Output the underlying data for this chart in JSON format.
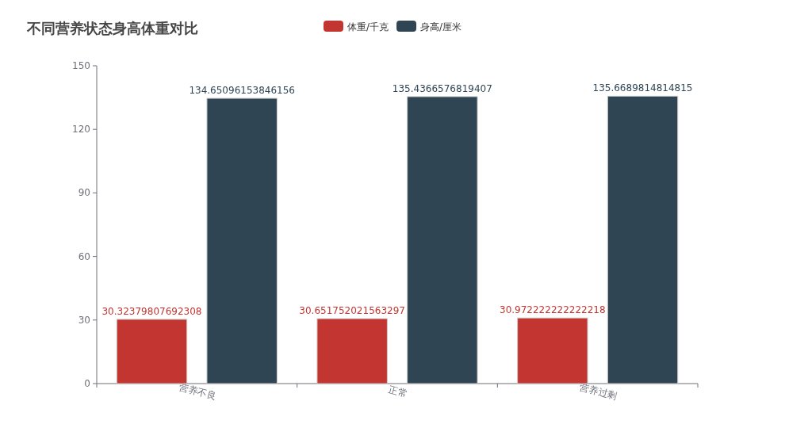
{
  "chart_data": {
    "type": "bar",
    "title": "不同营养状态身高体重对比",
    "categories": [
      "营养不良",
      "正常",
      "营养过剩"
    ],
    "series": [
      {
        "name": "体重/千克",
        "color": "#c23531",
        "values": [
          30.32379807692308,
          30.651752021563297,
          30.972222222222218
        ]
      },
      {
        "name": "身高/厘米",
        "color": "#2f4554",
        "values": [
          134.65096153846156,
          135.4366576819407,
          135.6689814814815
        ]
      }
    ],
    "ylim": [
      0,
      150
    ],
    "yticks": [
      0,
      30,
      60,
      90,
      120,
      150
    ],
    "data_labels": true,
    "legend": "top",
    "grid": false
  }
}
